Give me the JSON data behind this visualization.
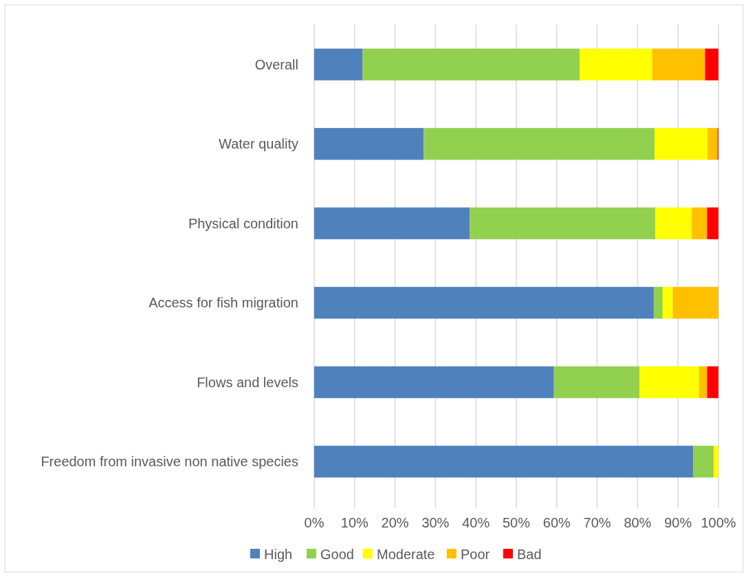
{
  "chart_data": {
    "type": "bar",
    "orientation": "horizontal",
    "stacked": true,
    "categories": [
      "Overall",
      "Water quality",
      "Physical condition",
      "Access for fish migration",
      "Flows and levels",
      "Freedom from invasive non native species"
    ],
    "series": [
      {
        "name": "High",
        "color": "#4f81bd",
        "values": [
          12.0,
          27.1,
          38.5,
          84.0,
          59.3,
          93.8
        ]
      },
      {
        "name": "Good",
        "color": "#92d050",
        "values": [
          53.7,
          57.1,
          45.9,
          2.2,
          21.2,
          5.0
        ]
      },
      {
        "name": "Moderate",
        "color": "#ffff00",
        "values": [
          17.9,
          13.1,
          9.0,
          2.5,
          14.7,
          1.2
        ]
      },
      {
        "name": "Poor",
        "color": "#ffc000",
        "values": [
          13.1,
          2.5,
          3.8,
          11.3,
          2.0,
          0
        ]
      },
      {
        "name": "Bad",
        "color": "#ff0000",
        "values": [
          3.3,
          0.2,
          2.8,
          0,
          2.8,
          0
        ]
      }
    ],
    "xlim": [
      0,
      100
    ],
    "xticks": [
      {
        "value": 0,
        "label": "0%"
      },
      {
        "value": 10,
        "label": "10%"
      },
      {
        "value": 20,
        "label": "20%"
      },
      {
        "value": 30,
        "label": "30%"
      },
      {
        "value": 40,
        "label": "40%"
      },
      {
        "value": 50,
        "label": "50%"
      },
      {
        "value": 60,
        "label": "60%"
      },
      {
        "value": 70,
        "label": "70%"
      },
      {
        "value": 80,
        "label": "80%"
      },
      {
        "value": 90,
        "label": "90%"
      },
      {
        "value": 100,
        "label": "100%"
      }
    ],
    "grid": "x",
    "legend": "bottom"
  }
}
